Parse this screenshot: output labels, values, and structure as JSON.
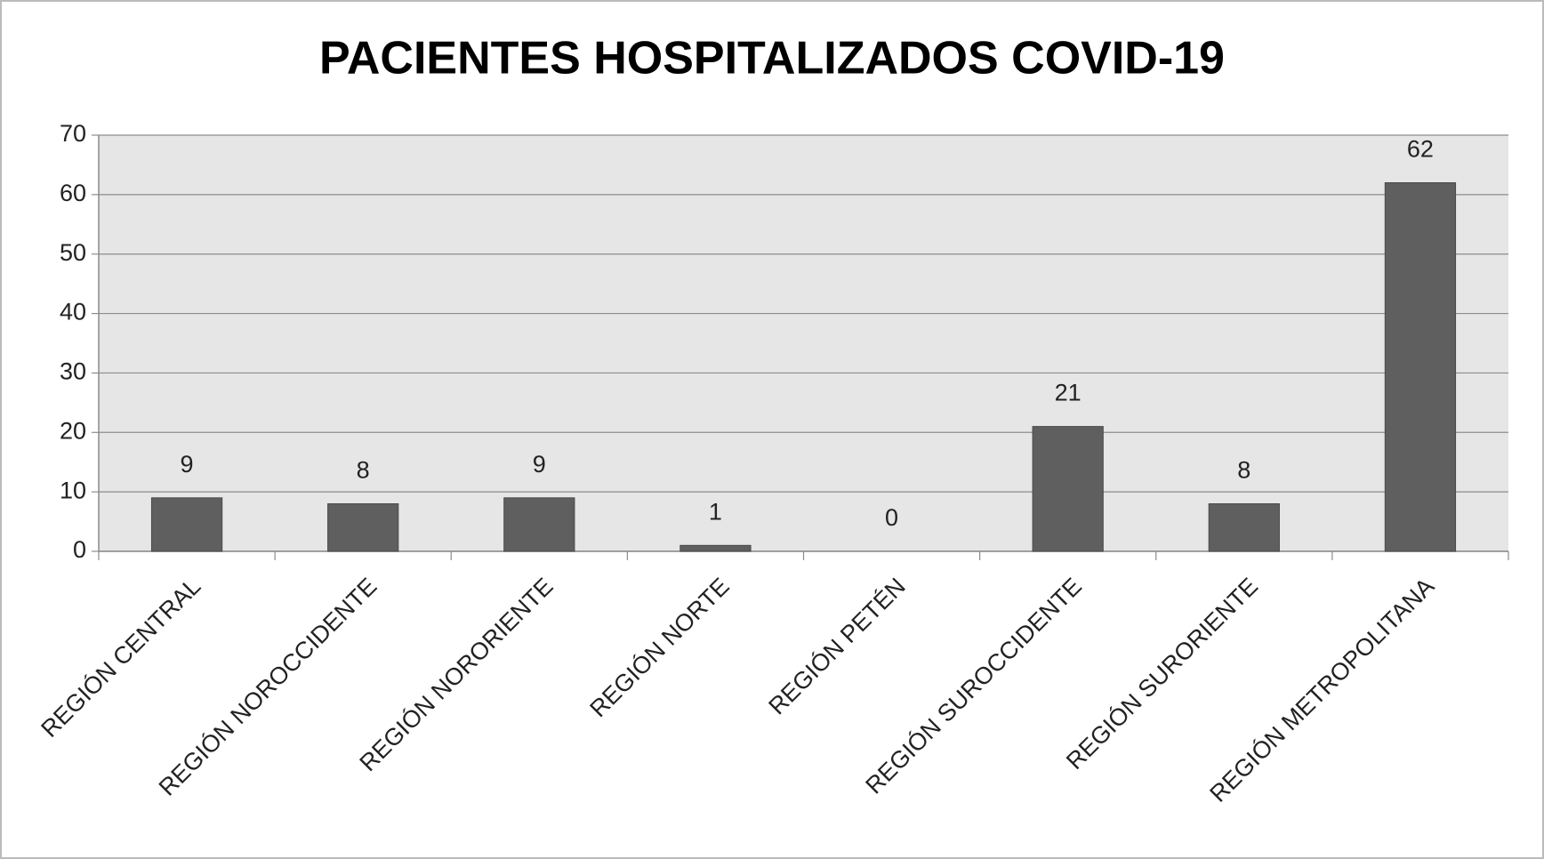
{
  "chart_data": {
    "type": "bar",
    "title": "PACIENTES HOSPITALIZADOS COVID-19",
    "categories": [
      "REGIÓN CENTRAL",
      "REGIÓN NOROCCIDENTE",
      "REGIÓN NORORIENTE",
      "REGIÓN NORTE",
      "REGIÓN PETÉN",
      "REGIÓN SUROCCIDENTE",
      "REGIÓN SURORIENTE",
      "REGIÓN METROPOLITANA"
    ],
    "values": [
      9,
      8,
      9,
      1,
      0,
      21,
      8,
      62
    ],
    "color": "#5f5f5f",
    "ylim": [
      0,
      70
    ],
    "yticks": [
      0,
      10,
      20,
      30,
      40,
      50,
      60,
      70
    ],
    "grid": true
  }
}
